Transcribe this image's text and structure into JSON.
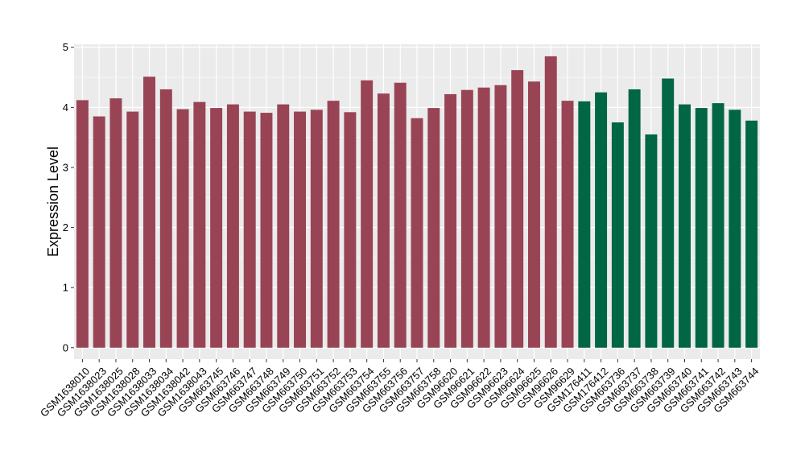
{
  "chart_data": {
    "type": "bar",
    "title": "",
    "xlabel": "",
    "ylabel": "Expression Level",
    "ylim": [
      -0.19,
      5.05
    ],
    "yticks": [
      0,
      1,
      2,
      3,
      4,
      5
    ],
    "grid": true,
    "legend": "none",
    "colors": {
      "group1": "#994455",
      "group2": "#006644",
      "panel": "#ebebeb",
      "gridline": "#ffffff"
    },
    "categories": [
      "GSM1638010",
      "GSM1638023",
      "GSM1638025",
      "GSM1638028",
      "GSM1638033",
      "GSM1638034",
      "GSM1638042",
      "GSM1638043",
      "GSM663745",
      "GSM663746",
      "GSM663747",
      "GSM663748",
      "GSM663749",
      "GSM663750",
      "GSM663751",
      "GSM663752",
      "GSM663753",
      "GSM663754",
      "GSM663755",
      "GSM663756",
      "GSM663757",
      "GSM663758",
      "GSM96620",
      "GSM96621",
      "GSM96622",
      "GSM96623",
      "GSM96624",
      "GSM96625",
      "GSM96626",
      "GSM96629",
      "GSM176411",
      "GSM176412",
      "GSM663736",
      "GSM663737",
      "GSM663738",
      "GSM663739",
      "GSM663740",
      "GSM663741",
      "GSM663742",
      "GSM663743",
      "GSM663744"
    ],
    "values": [
      4.12,
      3.85,
      4.15,
      3.93,
      4.51,
      4.3,
      3.97,
      4.09,
      3.99,
      4.05,
      3.93,
      3.91,
      4.05,
      3.93,
      3.96,
      4.11,
      3.92,
      4.45,
      4.23,
      4.41,
      3.82,
      3.99,
      4.22,
      4.29,
      4.33,
      4.37,
      4.62,
      4.43,
      4.85,
      4.11,
      4.1,
      4.25,
      3.75,
      4.3,
      3.55,
      4.48,
      4.05,
      3.99,
      4.07,
      3.96,
      3.78
    ],
    "groups": [
      "group1",
      "group1",
      "group1",
      "group1",
      "group1",
      "group1",
      "group1",
      "group1",
      "group1",
      "group1",
      "group1",
      "group1",
      "group1",
      "group1",
      "group1",
      "group1",
      "group1",
      "group1",
      "group1",
      "group1",
      "group1",
      "group1",
      "group1",
      "group1",
      "group1",
      "group1",
      "group1",
      "group1",
      "group1",
      "group1",
      "group2",
      "group2",
      "group2",
      "group2",
      "group2",
      "group2",
      "group2",
      "group2",
      "group2",
      "group2",
      "group2"
    ]
  }
}
